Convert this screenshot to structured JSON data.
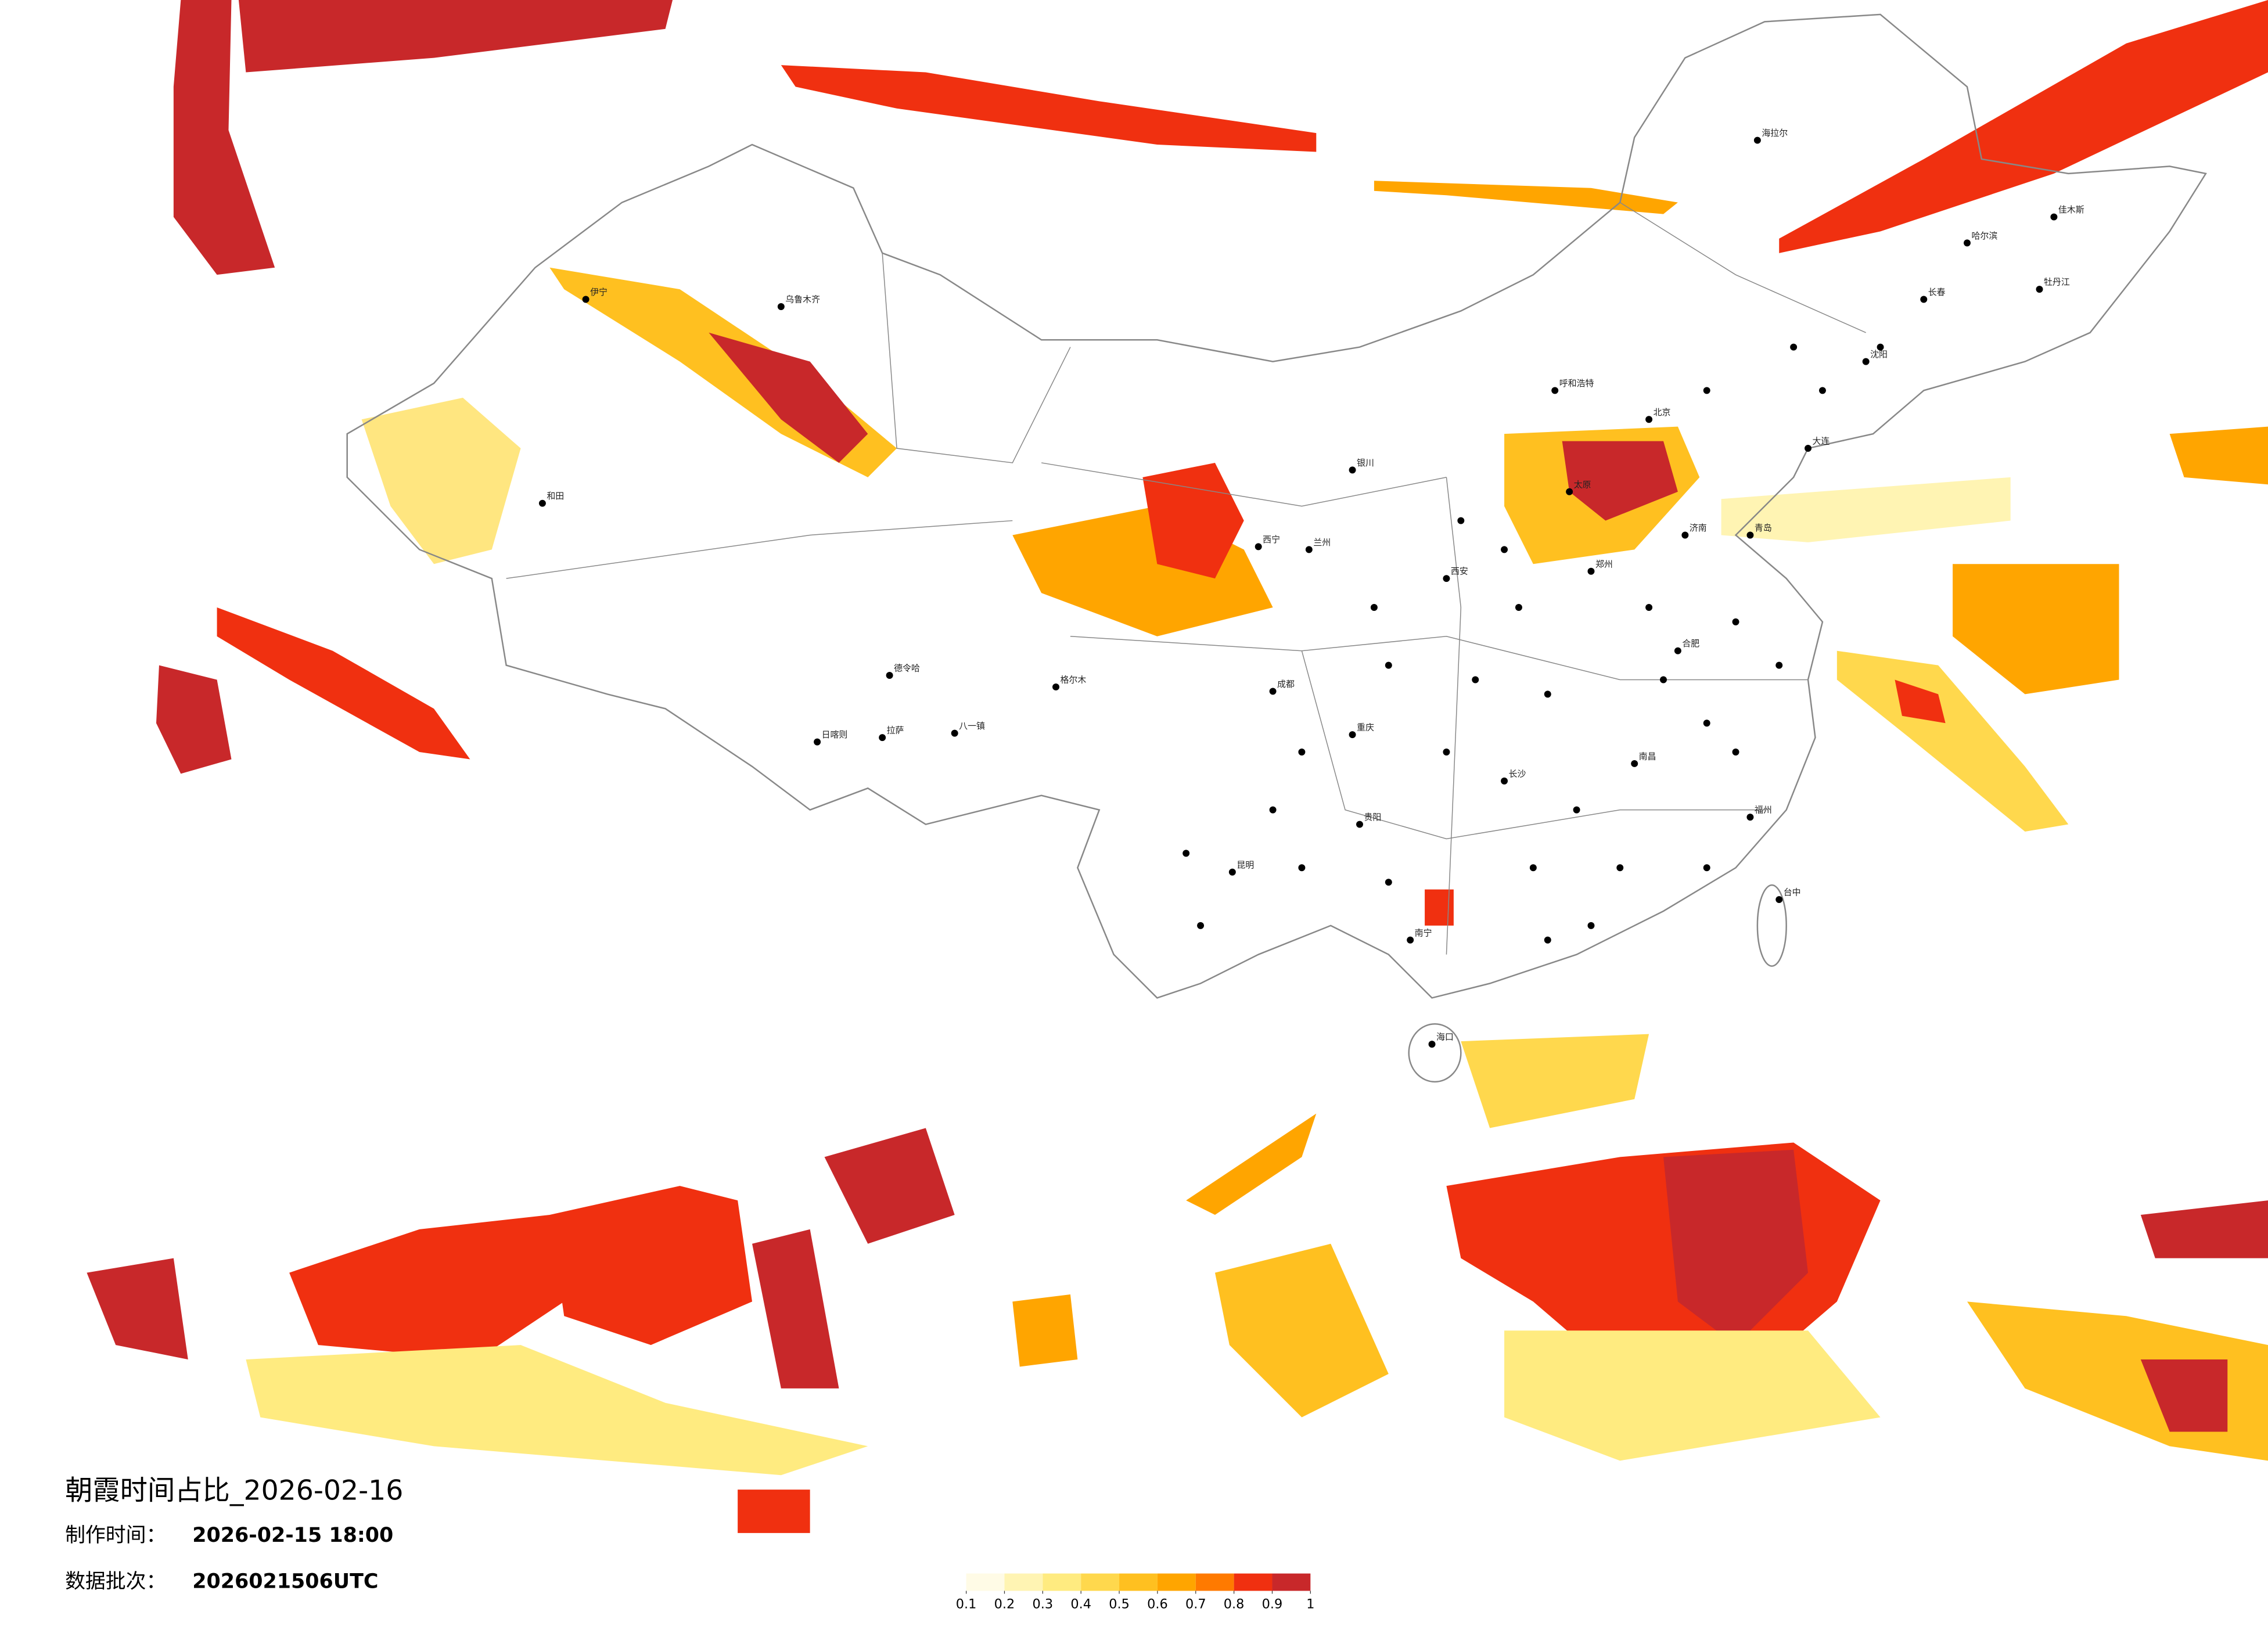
{
  "header": {
    "title": "朝霞时间占比_2026-02-16",
    "made_label": "制作时间：",
    "made_value": "2026-02-15 18:00",
    "batch_label": "数据批次：",
    "batch_value": "2026021506UTC"
  },
  "colorbar": {
    "ticks": [
      0.1,
      0.2,
      0.3,
      0.4,
      0.5,
      0.6,
      0.7,
      0.8,
      0.9,
      1
    ],
    "colors": [
      "#fffbe6",
      "#fff4b3",
      "#ffeb80",
      "#ffd84d",
      "#ffc020",
      "#ffa500",
      "#ff7a00",
      "#f03010",
      "#c8282a"
    ]
  },
  "cities": [
    "海拉尔",
    "哈尔滨",
    "长春",
    "沈阳",
    "北京",
    "呼和浩特",
    "太原",
    "济南",
    "郑州",
    "西安",
    "兰州",
    "西宁",
    "银川",
    "乌鲁木齐",
    "伊宁",
    "和田",
    "拉萨",
    "日喀则",
    "成都",
    "重庆",
    "贵阳",
    "昆明",
    "南宁",
    "长沙",
    "南昌",
    "福州",
    "台中",
    "海口",
    "德令哈",
    "格尔木",
    "八一镇",
    "佳木斯",
    "牡丹江",
    "大连",
    "青岛",
    "合肥"
  ]
}
